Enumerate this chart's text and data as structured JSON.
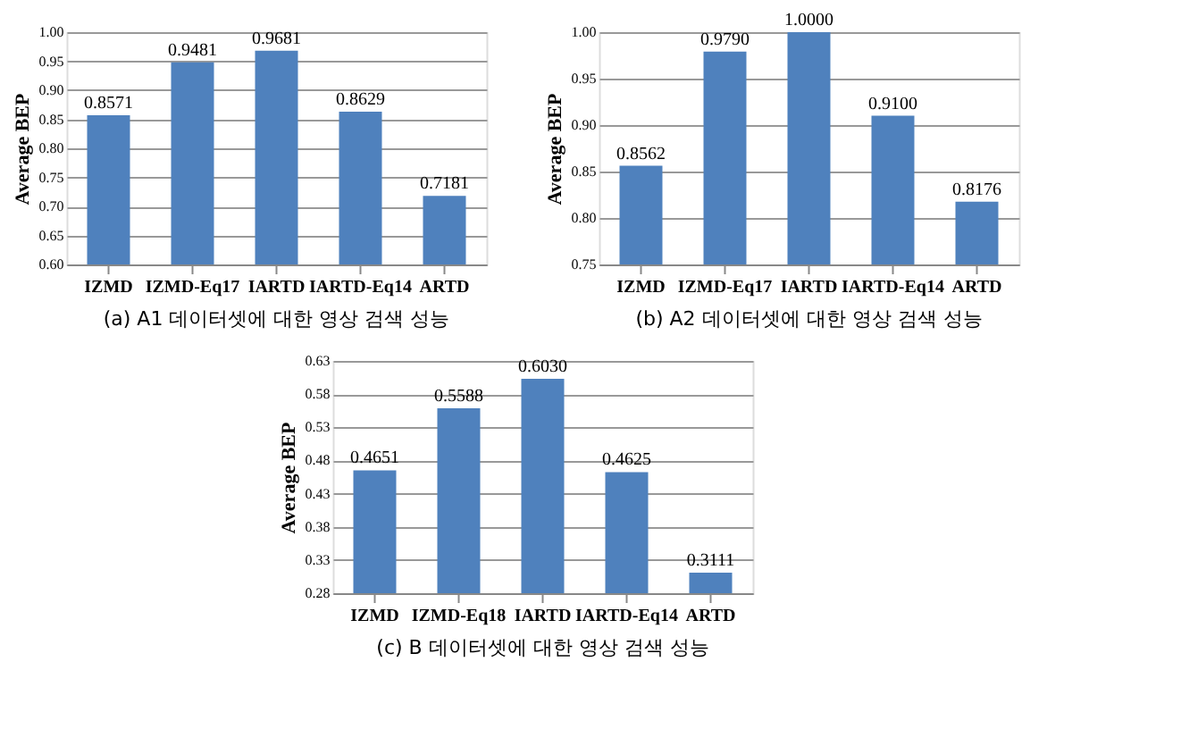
{
  "chart_data": [
    {
      "type": "bar",
      "title": "(a) A1 데이터셋에 대한 영상 검색 성능",
      "ylabel": "Average BEP",
      "categories": [
        "IZMD",
        "IZMD-Eq17",
        "IARTD",
        "IARTD-Eq14",
        "ARTD"
      ],
      "values": [
        0.8571,
        0.9481,
        0.9681,
        0.8629,
        0.7181
      ],
      "value_labels": [
        "0.8571",
        "0.9481",
        "0.9681",
        "0.8629",
        "0.7181"
      ],
      "color": "#4f81bd",
      "ylim": [
        0.6,
        1.0
      ],
      "yticks": [
        {
          "value": 0.6,
          "label": "0.60"
        },
        {
          "value": 0.65,
          "label": "0.65"
        },
        {
          "value": 0.7,
          "label": "0.70"
        },
        {
          "value": 0.75,
          "label": "0.75"
        },
        {
          "value": 0.8,
          "label": "0.80"
        },
        {
          "value": 0.85,
          "label": "0.85"
        },
        {
          "value": 0.9,
          "label": "0.90"
        },
        {
          "value": 0.95,
          "label": "0.95"
        },
        {
          "value": 1.0,
          "label": "1.00"
        }
      ],
      "grid": "y",
      "legend": false
    },
    {
      "type": "bar",
      "title": "(b) A2 데이터셋에 대한 영상 검색 성능",
      "ylabel": "Average BEP",
      "categories": [
        "IZMD",
        "IZMD-Eq17",
        "IARTD",
        "IARTD-Eq14",
        "ARTD"
      ],
      "values": [
        0.8562,
        0.979,
        1.0,
        0.91,
        0.8176
      ],
      "value_labels": [
        "0.8562",
        "0.9790",
        "1.0000",
        "0.9100",
        "0.8176"
      ],
      "color": "#4f81bd",
      "ylim": [
        0.75,
        1.0
      ],
      "yticks": [
        {
          "value": 0.75,
          "label": "0.75"
        },
        {
          "value": 0.8,
          "label": "0.80"
        },
        {
          "value": 0.85,
          "label": "0.85"
        },
        {
          "value": 0.9,
          "label": "0.90"
        },
        {
          "value": 0.95,
          "label": "0.95"
        },
        {
          "value": 1.0,
          "label": "1.00"
        }
      ],
      "grid": "y",
      "legend": false
    },
    {
      "type": "bar",
      "title": "(c) B 데이터셋에 대한 영상 검색 성능",
      "ylabel": "Average BEP",
      "categories": [
        "IZMD",
        "IZMD-Eq18",
        "IARTD",
        "IARTD-Eq14",
        "ARTD"
      ],
      "values": [
        0.4651,
        0.5588,
        0.603,
        0.4625,
        0.3111
      ],
      "value_labels": [
        "0.4651",
        "0.5588",
        "0.6030",
        "0.4625",
        "0.3111"
      ],
      "color": "#4f81bd",
      "ylim": [
        0.28,
        0.63
      ],
      "yticks": [
        {
          "value": 0.28,
          "label": "0.28"
        },
        {
          "value": 0.33,
          "label": "0.33"
        },
        {
          "value": 0.38,
          "label": "0.38"
        },
        {
          "value": 0.43,
          "label": "0.43"
        },
        {
          "value": 0.48,
          "label": "0.48"
        },
        {
          "value": 0.53,
          "label": "0.53"
        },
        {
          "value": 0.58,
          "label": "0.58"
        },
        {
          "value": 0.63,
          "label": "0.63"
        }
      ],
      "grid": "y",
      "legend": false
    }
  ]
}
